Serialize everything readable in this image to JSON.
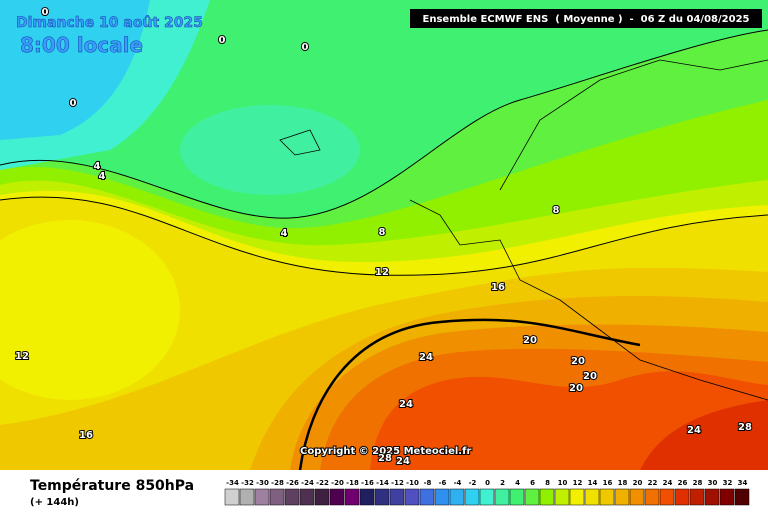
{
  "header": {
    "title": "Dimanche 10 août 2025",
    "time": "8:00 locale",
    "model": "Ensemble ECMWF ENS  ( Moyenne )  -  06 Z du 04/08/2025"
  },
  "copyright": "Copyright © 2025 Meteociel.fr",
  "footer": {
    "variable": "Température 850hPa",
    "lead": "(+ 144h)"
  },
  "legend": {
    "ticks": [
      -34,
      -32,
      -30,
      -28,
      -26,
      -24,
      -22,
      -20,
      -18,
      -16,
      -14,
      -12,
      -10,
      -8,
      -6,
      -4,
      -2,
      0,
      2,
      4,
      6,
      8,
      10,
      12,
      14,
      16,
      18,
      20,
      22,
      24,
      26,
      28,
      30,
      32,
      34
    ],
    "colors": [
      "#d0d0d0",
      "#b0b0b0",
      "#a080a0",
      "#806080",
      "#604060",
      "#503050",
      "#402040",
      "#500050",
      "#700070",
      "#202060",
      "#303080",
      "#4040a0",
      "#5050c0",
      "#4070e0",
      "#3090f0",
      "#30b0f0",
      "#30d0f0",
      "#40f0d0",
      "#40f0a0",
      "#40f070",
      "#60f040",
      "#90f000",
      "#c0f000",
      "#f0f000",
      "#f0e000",
      "#f0c800",
      "#f0b000",
      "#f09000",
      "#f07000",
      "#f05000",
      "#e03000",
      "#c02000",
      "#a01000",
      "#800000",
      "#500000"
    ]
  },
  "contour_labels": [
    0,
    0,
    0,
    0,
    4,
    4,
    4,
    8,
    8,
    12,
    12,
    16,
    16,
    20,
    20,
    20,
    20,
    24,
    24,
    24,
    24,
    28,
    28
  ]
}
